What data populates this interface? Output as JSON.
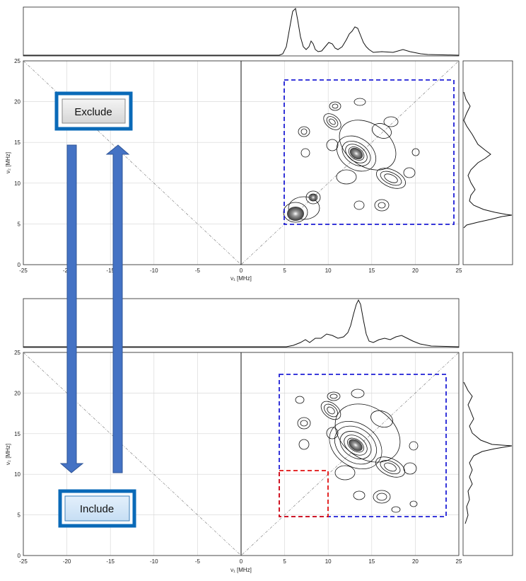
{
  "panels": [
    {
      "id": "top",
      "xlabel": "ν₁ [MHz]",
      "ylabel": "ν₂ [MHz]",
      "xticks": [
        "-25",
        "-20",
        "-15",
        "-10",
        "-5",
        "0",
        "5",
        "10",
        "15",
        "20",
        "25"
      ],
      "yticks": [
        "0",
        "5",
        "10",
        "15",
        "20",
        "25"
      ],
      "x_range": [
        -25,
        25
      ],
      "y_range": [
        0,
        25
      ],
      "selection_box": {
        "color": "#1f1fd6",
        "x": [
          5,
          24.5
        ],
        "y": [
          5,
          22.5
        ]
      },
      "button": {
        "label": "Exclude",
        "state": "pressed"
      }
    },
    {
      "id": "bottom",
      "xlabel": "ν₁ [MHz]",
      "ylabel": "ν₂ [MHz]",
      "xticks": [
        "-25",
        "-20",
        "-15",
        "-10",
        "-5",
        "0",
        "5",
        "10",
        "15",
        "20",
        "25"
      ],
      "yticks": [
        "0",
        "5",
        "10",
        "15",
        "20",
        "25"
      ],
      "x_range": [
        -25,
        25
      ],
      "y_range": [
        0,
        25
      ],
      "selection_box": {
        "color": "#1f1fd6",
        "x": [
          4.5,
          24
        ],
        "y": [
          5,
          22.5
        ]
      },
      "excluded_box": {
        "color": "#e01010",
        "x": [
          4.5,
          10
        ],
        "y": [
          5,
          10.5
        ]
      },
      "button": {
        "label": "Include",
        "state": "active"
      }
    }
  ],
  "colors": {
    "arrow": "#4472c4",
    "button_frame": "#0a6ab8",
    "grid": "#d4d4d4"
  }
}
